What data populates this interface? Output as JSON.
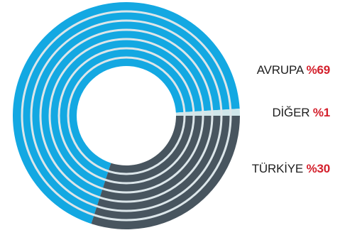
{
  "chart_data": {
    "type": "pie",
    "style": "ring",
    "slices": [
      {
        "label": "AVRUPA",
        "value": 69,
        "value_text": "%69",
        "color": "#13a8e2"
      },
      {
        "label": "DİĞER",
        "value": 1,
        "value_text": "%1",
        "color": "#cfe6ea"
      },
      {
        "label": "TÜRKİYE",
        "value": 30,
        "value_text": "%30",
        "color": "#48555f"
      }
    ],
    "ring_separator_color": "#dce6ea",
    "accent_color": "#d4202c"
  }
}
